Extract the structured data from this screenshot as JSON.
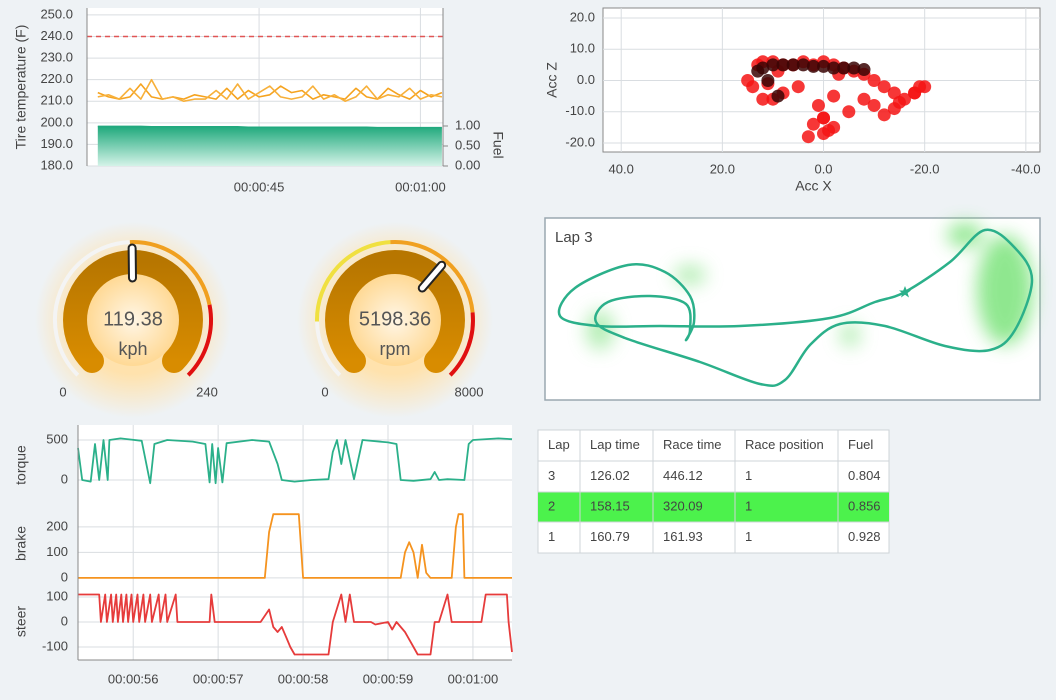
{
  "chart_data": [
    {
      "type": "line",
      "y_label": "Tire temperature (F)",
      "y2_label": "Fuel",
      "xlim": [
        29,
        62.1
      ],
      "xticks": [
        {
          "value": 45,
          "label": "00:00:45"
        },
        {
          "value": 60,
          "label": "00:01:00"
        }
      ],
      "ylim": [
        180,
        253.2
      ],
      "yticks": [
        {
          "value": 180,
          "label": "180.0"
        },
        {
          "value": 190,
          "label": "190.0"
        },
        {
          "value": 200,
          "label": "200.0"
        },
        {
          "value": 210,
          "label": "210.0"
        },
        {
          "value": 220,
          "label": "220.0"
        },
        {
          "value": 230,
          "label": "230.0"
        },
        {
          "value": 240,
          "label": "240.0"
        },
        {
          "value": 250,
          "label": "250.0"
        }
      ],
      "y2lim": [
        0,
        3.95
      ],
      "y2ticks": [
        {
          "value": 0,
          "label": "0.00"
        },
        {
          "value": 0.5,
          "label": "0.50"
        },
        {
          "value": 1,
          "label": "1.00"
        }
      ],
      "reference_line": {
        "value": 240,
        "color": "#e05555"
      },
      "grid": true,
      "x": [
        30,
        31,
        32,
        33,
        34,
        35,
        36,
        37,
        38,
        39,
        40,
        41,
        42,
        43,
        44,
        45,
        46,
        47,
        48,
        49,
        50,
        51,
        52,
        53,
        54,
        55,
        56,
        57,
        58,
        59,
        60,
        61,
        62
      ],
      "series": [
        {
          "color": "#f5a31f",
          "values": [
            214,
            212,
            211,
            212,
            218,
            212,
            211,
            212,
            211,
            213,
            212,
            211,
            216,
            211,
            215,
            212,
            213,
            217,
            214,
            215,
            211,
            213,
            212,
            211,
            216,
            212,
            211,
            216,
            213,
            211,
            215,
            212,
            214
          ]
        },
        {
          "color": "#f7b03a",
          "values": [
            212,
            213,
            211,
            216,
            211,
            220,
            211,
            212,
            210,
            211,
            211,
            215,
            211,
            218,
            211,
            214,
            217,
            212,
            211,
            212,
            217,
            211,
            213,
            210,
            212,
            217,
            211,
            213,
            212,
            216,
            211,
            213,
            212
          ]
        },
        {
          "axis": "y2",
          "kind": "area",
          "color": "#22a97f",
          "values": [
            0.99,
            0.99,
            0.99,
            0.99,
            0.99,
            0.98,
            0.98,
            0.98,
            0.98,
            0.98,
            0.98,
            0.98,
            0.98,
            0.98,
            0.97,
            0.97,
            0.97,
            0.97,
            0.97,
            0.97,
            0.97,
            0.97,
            0.97,
            0.97,
            0.97,
            0.97,
            0.96,
            0.96,
            0.96,
            0.96,
            0.96,
            0.96,
            0.96
          ]
        }
      ]
    },
    {
      "type": "scatter",
      "x_label": "Acc X",
      "y_label": "Acc Z",
      "xlim": [
        43.6,
        -42.8
      ],
      "xticks": [
        {
          "value": 40,
          "label": "40.0"
        },
        {
          "value": 20,
          "label": "20.0"
        },
        {
          "value": 0,
          "label": "0.0"
        },
        {
          "value": -20,
          "label": "-20.0"
        },
        {
          "value": -40,
          "label": "-40.0"
        }
      ],
      "ylim": [
        -22.9,
        23.2
      ],
      "yticks": [
        {
          "value": -20,
          "label": "-20.0"
        },
        {
          "value": -10,
          "label": "-10.0"
        },
        {
          "value": 0,
          "label": "0.0"
        },
        {
          "value": 10,
          "label": "10.0"
        },
        {
          "value": 20,
          "label": "20.0"
        }
      ],
      "grid": true,
      "series": [
        {
          "color": "#f51414",
          "x": [
            14,
            15,
            13,
            12,
            10,
            8,
            6,
            4,
            2,
            0,
            -2,
            -4,
            -6,
            -8,
            -10,
            -12,
            -14,
            -16,
            -18,
            -19,
            -15,
            -10,
            -5,
            0,
            2,
            3,
            0,
            -2,
            5,
            8,
            10,
            12,
            -20,
            -18,
            -14,
            -8,
            -2,
            1,
            0,
            -1,
            11,
            9,
            -3,
            -12
          ],
          "values": [
            -2,
            0,
            5,
            6,
            6,
            5,
            5,
            6,
            5,
            6,
            5,
            4,
            3,
            2,
            0,
            -2,
            -4,
            -6,
            -4,
            -2,
            -7,
            -8,
            -10,
            -12,
            -14,
            -18,
            -17,
            -15,
            -2,
            -4,
            -6,
            -6,
            -2,
            -4,
            -9,
            -6,
            -5,
            -8,
            -12,
            -16,
            -1,
            3,
            2,
            -11
          ]
        },
        {
          "color": "#3a0505",
          "x": [
            13,
            12,
            10,
            8,
            6,
            4,
            2,
            0,
            -2,
            -4,
            -6,
            -8,
            11,
            9
          ],
          "values": [
            3,
            4,
            5,
            5,
            5,
            5,
            4.5,
            4.5,
            4,
            4,
            4,
            3.5,
            0,
            -5
          ]
        }
      ]
    },
    {
      "type": "gauge",
      "value": 119.38,
      "unit": "kph",
      "min": 0,
      "max": 240,
      "bands": [
        {
          "from": 0,
          "to": 118,
          "color": "#f4f4f4"
        },
        {
          "from": 118,
          "to": 190,
          "color": "#f0a020"
        },
        {
          "from": 190,
          "to": 240,
          "color": "#e01010"
        }
      ]
    },
    {
      "type": "gauge",
      "value": 5198.36,
      "unit": "rpm",
      "min": 0,
      "max": 8000,
      "bands": [
        {
          "from": 0,
          "to": 1300,
          "color": "#f4f4f4"
        },
        {
          "from": 1300,
          "to": 3900,
          "color": "#f0e040"
        },
        {
          "from": 3900,
          "to": 6500,
          "color": "#f0a020"
        },
        {
          "from": 6500,
          "to": 8000,
          "color": "#e01010"
        }
      ]
    },
    {
      "type": "panel_lines",
      "xlim": [
        55.35,
        60.46
      ],
      "xticks": [
        {
          "value": 56,
          "label": "00:00:56"
        },
        {
          "value": 57,
          "label": "00:00:57"
        },
        {
          "value": 58,
          "label": "00:00:58"
        },
        {
          "value": 59,
          "label": "00:00:59"
        },
        {
          "value": 60,
          "label": "00:01:00"
        }
      ],
      "grid": true,
      "panels": [
        {
          "y_label": "torque",
          "color": "#2bb08a",
          "ylim": [
            -250,
            625
          ],
          "yticks": [
            0,
            500
          ],
          "x": [
            55.35,
            55.4,
            55.5,
            55.55,
            55.6,
            55.65,
            55.7,
            55.72,
            55.85,
            56.1,
            56.2,
            56.25,
            56.4,
            56.7,
            56.85,
            56.9,
            56.93,
            56.97,
            57.0,
            57.05,
            57.1,
            57.4,
            57.6,
            57.7,
            57.75,
            57.9,
            58.1,
            58.3,
            58.35,
            58.4,
            58.45,
            58.5,
            58.6,
            58.7,
            59.0,
            59.1,
            59.15,
            59.3,
            59.5,
            59.55,
            59.6,
            59.7,
            59.9,
            59.95,
            60.0,
            60.3,
            60.46
          ],
          "values": [
            400,
            0,
            -20,
            450,
            0,
            500,
            0,
            500,
            520,
            490,
            -40,
            450,
            500,
            480,
            450,
            -30,
            450,
            -40,
            400,
            -30,
            460,
            500,
            480,
            200,
            0,
            -20,
            0,
            10,
            350,
            500,
            200,
            500,
            10,
            500,
            470,
            450,
            0,
            -10,
            10,
            100,
            0,
            10,
            0,
            450,
            500,
            520,
            510
          ]
        },
        {
          "y_label": "brake",
          "color": "#f5931f",
          "ylim": [
            -16,
            286
          ],
          "yticks": [
            0,
            100,
            200
          ],
          "x": [
            55.35,
            57.55,
            57.6,
            57.65,
            57.95,
            58.0,
            59.15,
            59.2,
            59.25,
            59.3,
            59.35,
            59.4,
            59.45,
            59.5,
            59.75,
            59.8,
            59.83,
            59.88,
            59.9,
            60.46
          ],
          "values": [
            0,
            0,
            180,
            250,
            250,
            0,
            0,
            100,
            140,
            100,
            0,
            130,
            20,
            0,
            0,
            200,
            250,
            250,
            0,
            0
          ]
        },
        {
          "y_label": "steer",
          "color": "#e63b3b",
          "ylim": [
            -132,
            136
          ],
          "yticks": [
            -100,
            0,
            100
          ],
          "x": [
            55.35,
            55.6,
            55.62,
            55.67,
            55.69,
            55.74,
            55.76,
            55.8,
            55.82,
            55.86,
            55.88,
            55.92,
            55.94,
            55.98,
            56.0,
            56.05,
            56.07,
            56.12,
            56.14,
            56.2,
            56.22,
            56.3,
            56.32,
            56.38,
            56.4,
            56.5,
            56.52,
            56.9,
            56.92,
            56.96,
            57.5,
            57.6,
            57.65,
            57.7,
            57.75,
            57.8,
            57.85,
            57.9,
            57.95,
            58.0,
            58.05,
            58.3,
            58.35,
            58.45,
            58.5,
            58.55,
            58.6,
            58.8,
            58.85,
            59.0,
            59.05,
            59.1,
            59.2,
            59.3,
            59.35,
            59.5,
            59.55,
            59.6,
            59.7,
            59.75,
            59.8,
            60.1,
            60.15,
            60.4,
            60.42,
            60.46
          ],
          "values": [
            110,
            110,
            0,
            110,
            0,
            110,
            0,
            110,
            0,
            110,
            0,
            110,
            0,
            110,
            0,
            110,
            0,
            110,
            0,
            110,
            0,
            110,
            0,
            110,
            0,
            110,
            0,
            0,
            110,
            0,
            0,
            50,
            -20,
            -40,
            -20,
            -60,
            -100,
            -130,
            -130,
            -130,
            -130,
            -130,
            0,
            110,
            0,
            110,
            0,
            0,
            -10,
            0,
            -30,
            0,
            -40,
            -100,
            -130,
            -130,
            0,
            0,
            110,
            0,
            0,
            0,
            110,
            110,
            0,
            -120
          ]
        }
      ]
    }
  ],
  "track_map": {
    "title": "Lap 3"
  },
  "table": {
    "columns": [
      "Lap",
      "Lap time",
      "Race time",
      "Race position",
      "Fuel"
    ],
    "rows": [
      [
        3,
        126.02,
        446.12,
        1,
        0.804
      ],
      [
        2,
        158.15,
        320.09,
        1,
        0.856
      ],
      [
        1,
        160.79,
        161.93,
        1,
        0.928
      ]
    ],
    "selected_row": 1,
    "highlight_color": "#4cf24c"
  }
}
